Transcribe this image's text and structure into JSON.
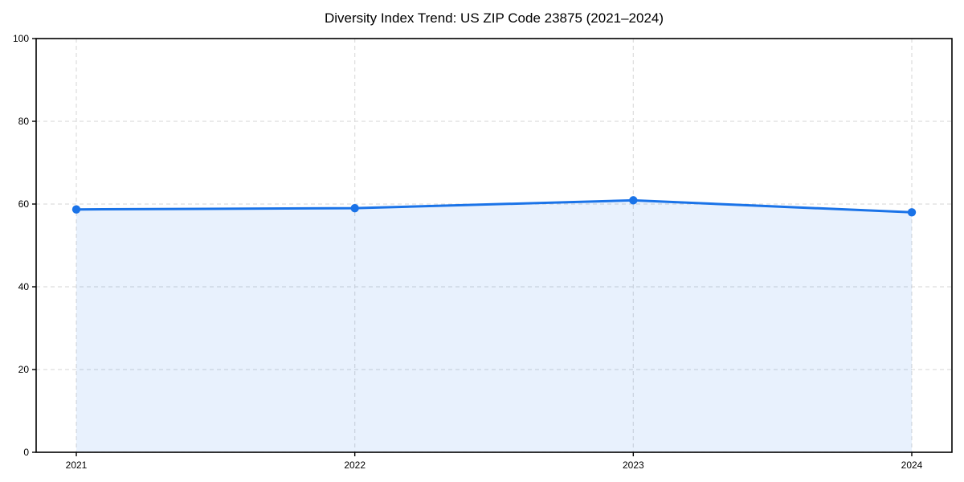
{
  "chart_data": {
    "type": "area",
    "title": "Diversity Index Trend: US ZIP Code 23875 (2021–2024)",
    "series_name": "Diversity Index",
    "categories": [
      "2021",
      "2022",
      "2023",
      "2024"
    ],
    "values": [
      58.7,
      59.0,
      60.9,
      58.0
    ],
    "xlabel": "",
    "ylabel": "",
    "ylim": [
      0,
      100
    ],
    "yticks": [
      0,
      20,
      40,
      60,
      80,
      100
    ],
    "grid": true,
    "grid_style": "dashed",
    "legend_position": "none",
    "marker": "circle",
    "colors": {
      "line": "#1a73e8",
      "marker": "#1a73e8",
      "area_fill": "rgba(26,115,232,0.10)",
      "grid": "#dddddd",
      "spine": "#000000",
      "tick_text": "#000000",
      "background": "#ffffff"
    }
  }
}
